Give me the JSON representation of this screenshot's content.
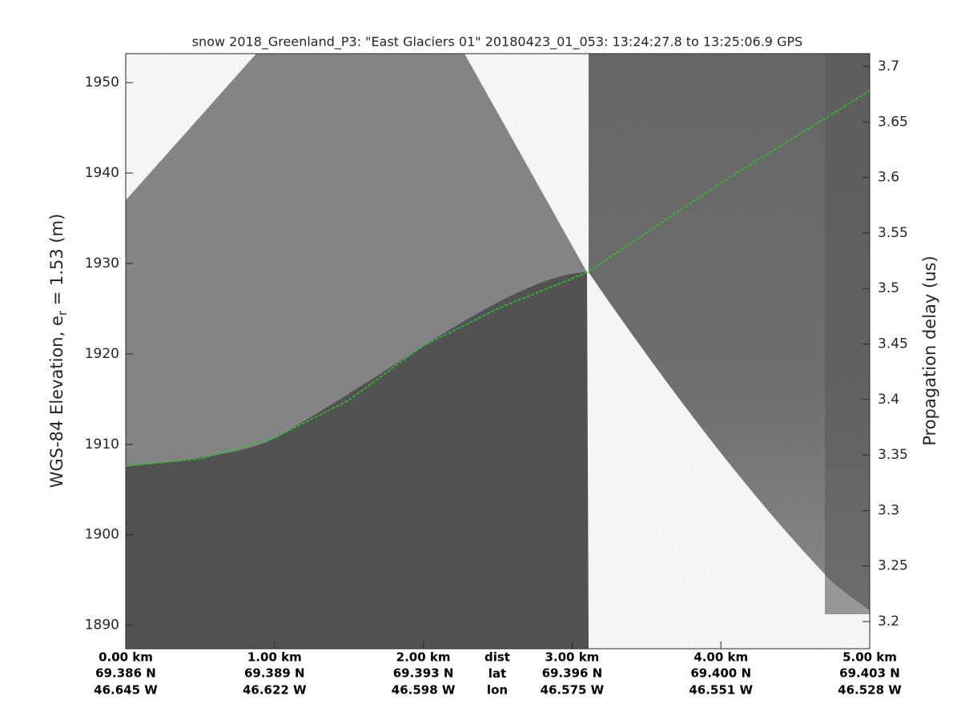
{
  "chart_data": {
    "type": "line",
    "title": "snow 2018_Greenland_P3: \"East Glaciers 01\"  20180423_01_053: 13:24:27.8 to 13:25:06.9 GPS",
    "ylabel": [
      "WGS-84 Elevation, e",
      "r",
      " = 1.53 (m)"
    ],
    "y2label": "Propagation delay (us)",
    "xlim": [
      0,
      5
    ],
    "xticks": [
      {
        "value": 0,
        "label": "0.00 km"
      },
      {
        "value": 1,
        "label": "1.00 km"
      },
      {
        "value": 2,
        "label": "2.00 km"
      },
      {
        "value": 3,
        "label": "3.00 km"
      },
      {
        "value": 4,
        "label": "4.00 km"
      },
      {
        "value": 5,
        "label": "5.00 km"
      }
    ],
    "xtick_lat": [
      "69.386 N",
      "69.389 N",
      "69.393 N",
      "69.396 N",
      "69.400 N",
      "69.403 N"
    ],
    "xtick_lon": [
      "46.645 W",
      "46.622 W",
      "46.598 W",
      "46.575 W",
      "46.551 W",
      "46.528 W"
    ],
    "x_row_labels": [
      "dist",
      "lat",
      "lon"
    ],
    "ylim": [
      1887.4,
      1953.2
    ],
    "yticks": [
      1890,
      1900,
      1910,
      1920,
      1930,
      1940,
      1950
    ],
    "y2lim": [
      3.1755,
      3.7115
    ],
    "y2ticks": [
      3.2,
      3.25,
      3.3,
      3.35,
      3.4,
      3.45,
      3.5,
      3.55,
      3.6,
      3.65,
      3.7
    ],
    "x": [
      0,
      0.5,
      1,
      1.5,
      2,
      2.5,
      3.1,
      4,
      5
    ],
    "series": [
      {
        "color": "#22cc22",
        "values": [
          1907.6,
          1908.4,
          1910.7,
          1914.9,
          1920.9,
          1925.0,
          1929.0,
          1938.9,
          1949.1
        ]
      }
    ]
  }
}
